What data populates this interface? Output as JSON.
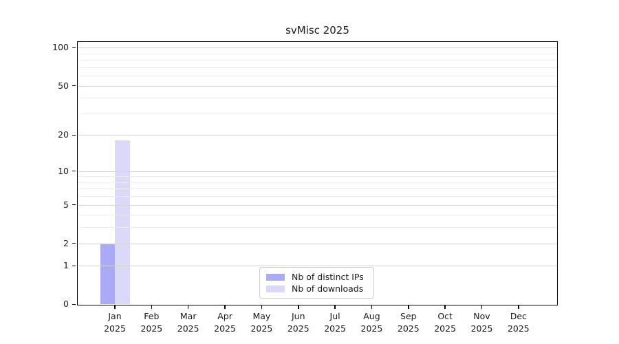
{
  "title": "svMisc 2025",
  "chart_data": {
    "type": "bar",
    "title": "svMisc 2025",
    "scale": "log1p",
    "categories": [
      "Jan",
      "Feb",
      "Mar",
      "Apr",
      "May",
      "Jun",
      "Jul",
      "Aug",
      "Sep",
      "Oct",
      "Nov",
      "Dec"
    ],
    "x_tick_year": "2025",
    "series": [
      {
        "name": "Nb of distinct IPs",
        "color": "#aaaaf8",
        "values": [
          2,
          0,
          0,
          0,
          0,
          0,
          0,
          0,
          0,
          0,
          0,
          0
        ]
      },
      {
        "name": "Nb of downloads",
        "color": "#dadaf8",
        "values": [
          18,
          0,
          0,
          0,
          0,
          0,
          0,
          0,
          0,
          0,
          0,
          0
        ]
      }
    ],
    "y_ticks": [
      0,
      1,
      2,
      5,
      10,
      20,
      50,
      100
    ],
    "y_minor_gridlines": [
      3,
      4,
      6,
      7,
      8,
      9,
      30,
      40,
      60,
      70,
      80,
      90
    ],
    "ylim": [
      0,
      112
    ],
    "grid": "horizontal",
    "legend_position": "bottom-center"
  },
  "colors": {
    "major_grid": "#d4d4d4",
    "minor_grid": "#ececec",
    "spine": "#000000",
    "text": "#1a1a1a",
    "background": "#ffffff"
  }
}
